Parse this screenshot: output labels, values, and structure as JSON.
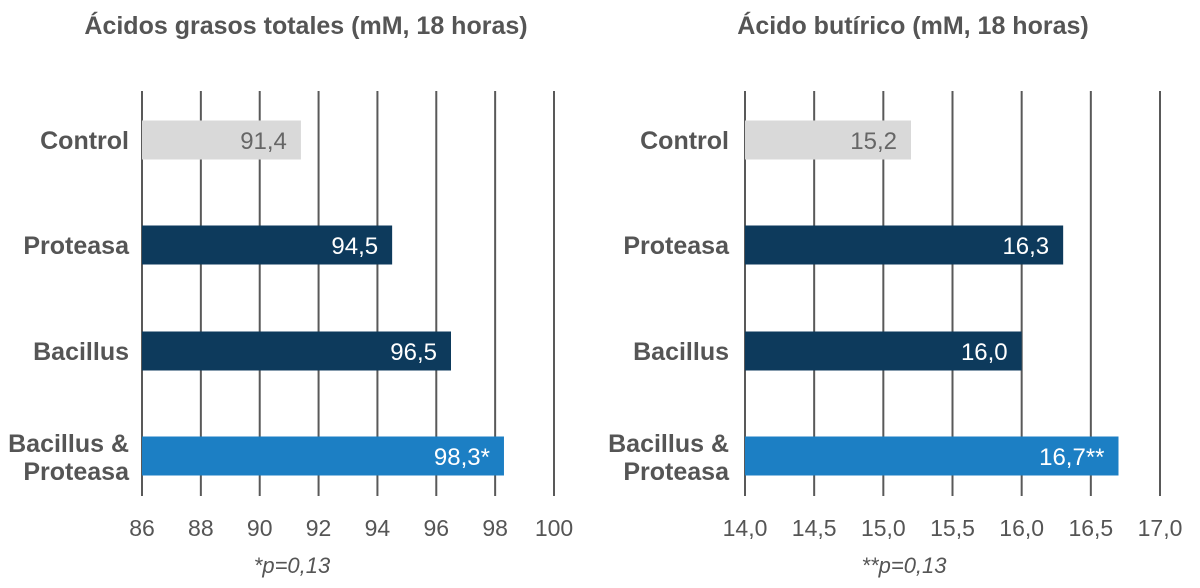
{
  "chart_data": [
    {
      "type": "bar",
      "orientation": "horizontal",
      "title": "Ácidos grasos totales (mM, 18 horas)",
      "categories": [
        "Control",
        "Proteasa",
        "Bacillus",
        "Bacillus & Proteasa"
      ],
      "category_lines": [
        [
          "Control"
        ],
        [
          "Proteasa"
        ],
        [
          "Bacillus"
        ],
        [
          "Bacillus &",
          "Proteasa"
        ]
      ],
      "values": [
        91.4,
        94.5,
        96.5,
        98.3
      ],
      "value_labels": [
        "91,4",
        "94,5",
        "96,5",
        "98,3*"
      ],
      "bar_colors": [
        "#d9d9d9",
        "#0d3a5c",
        "#0d3a5c",
        "#1c7fc4"
      ],
      "label_colors": [
        "#666666",
        "#ffffff",
        "#ffffff",
        "#ffffff"
      ],
      "xlim": [
        86,
        100
      ],
      "ticks": [
        86,
        88,
        90,
        92,
        94,
        96,
        98,
        100
      ],
      "tick_labels": [
        "86",
        "88",
        "90",
        "92",
        "94",
        "96",
        "98",
        "100"
      ],
      "grid": true,
      "footnote": "*p=0,13"
    },
    {
      "type": "bar",
      "orientation": "horizontal",
      "title": "Ácido butírico (mM, 18 horas)",
      "categories": [
        "Control",
        "Proteasa",
        "Bacillus",
        "Bacillus & Proteasa"
      ],
      "category_lines": [
        [
          "Control"
        ],
        [
          "Proteasa"
        ],
        [
          "Bacillus"
        ],
        [
          "Bacillus &",
          "Proteasa"
        ]
      ],
      "values": [
        15.2,
        16.3,
        16.0,
        16.7
      ],
      "value_labels": [
        "15,2",
        "16,3",
        "16,0",
        "16,7**"
      ],
      "bar_colors": [
        "#d9d9d9",
        "#0d3a5c",
        "#0d3a5c",
        "#1c7fc4"
      ],
      "label_colors": [
        "#666666",
        "#ffffff",
        "#ffffff",
        "#ffffff"
      ],
      "xlim": [
        14.0,
        17.0
      ],
      "ticks": [
        14.0,
        14.5,
        15.0,
        15.5,
        16.0,
        16.5,
        17.0
      ],
      "tick_labels": [
        "14,0",
        "14,5",
        "15,0",
        "15,5",
        "16,0",
        "16,5",
        "17,0"
      ],
      "grid": true,
      "footnote": "**p=0,13"
    }
  ],
  "colors": {
    "control": "#d9d9d9",
    "single_treatment": "#0d3a5c",
    "combined_treatment": "#1c7fc4",
    "grid": "#595959",
    "text": "#555555"
  }
}
